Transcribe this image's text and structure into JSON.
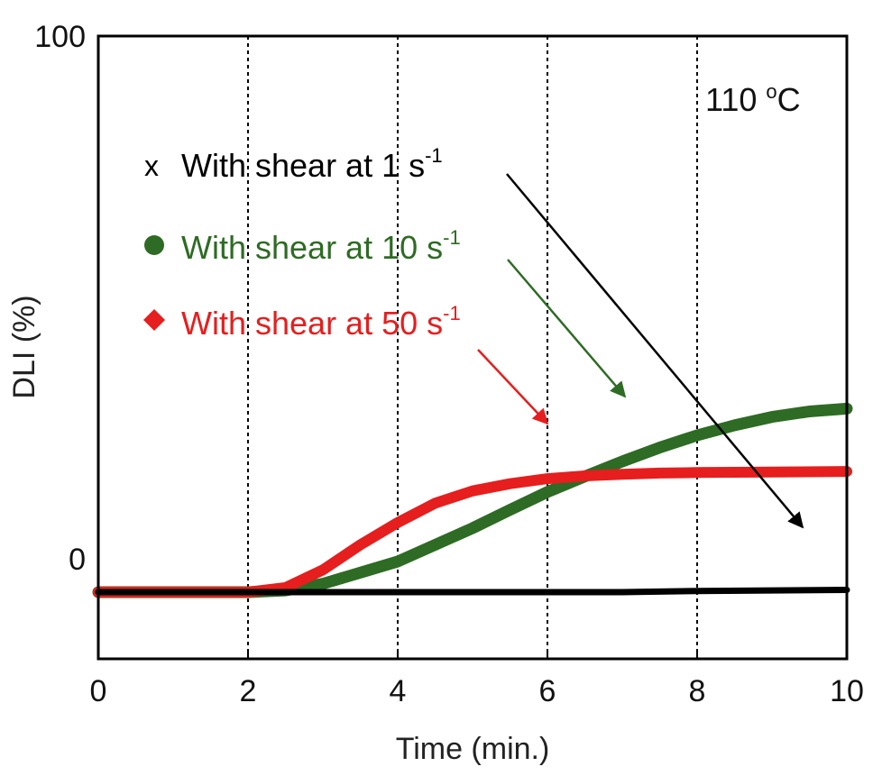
{
  "chart_data": {
    "type": "line",
    "xlabel": "Time (min.)",
    "ylabel": "DLI (%)",
    "xlim": [
      0,
      10
    ],
    "ylim": [
      -12,
      100
    ],
    "x_ticks": [
      0,
      2,
      4,
      6,
      8,
      10
    ],
    "x_tick_labels": [
      "0",
      "2",
      "4",
      "6",
      "8",
      "10"
    ],
    "y_ticks": [
      0,
      100
    ],
    "y_tick_labels": [
      "0",
      "100"
    ],
    "vertical_grid": [
      2,
      4,
      6,
      8
    ],
    "grid": "vertical dashed",
    "annotation": "110 °C",
    "annotation_parts": {
      "value": "110 ",
      "degree": "o",
      "unit": "C"
    },
    "legend_placement": "upper-left inside plot",
    "series": [
      {
        "name": "With shear at 1 s-1",
        "label_main": "With shear at 1 s",
        "label_sup": "-1",
        "marker": "x",
        "color": "#000000",
        "x": [
          0,
          1,
          2,
          3,
          4,
          5,
          6,
          7,
          8,
          9,
          10
        ],
        "y": [
          0,
          0,
          0,
          0,
          0,
          0,
          0,
          0,
          0.2,
          0.3,
          0.4
        ]
      },
      {
        "name": "With shear at 10 s-1",
        "label_main": "With shear at 10 s",
        "label_sup": "-1",
        "marker": "circle",
        "color": "#2e6b24",
        "x": [
          0,
          1,
          2,
          2.5,
          3,
          3.5,
          4,
          4.5,
          5,
          5.5,
          6,
          6.5,
          7,
          7.5,
          8,
          8.5,
          9,
          9.5,
          10
        ],
        "y": [
          0,
          0,
          0,
          0.3,
          1.5,
          3.5,
          5.5,
          8.5,
          11.5,
          14.8,
          18.0,
          20.8,
          23.5,
          26,
          28.2,
          30,
          31.5,
          32.5,
          33
        ]
      },
      {
        "name": "With shear at 50 s-1",
        "label_main": "With shear at 50 s",
        "label_sup": "-1",
        "marker": "diamond",
        "color": "#e61e1e",
        "x": [
          0,
          1,
          2,
          2.5,
          3,
          3.5,
          4,
          4.5,
          5,
          5.5,
          6,
          6.5,
          7,
          7.5,
          8,
          9,
          10
        ],
        "y": [
          0,
          0,
          0,
          0.8,
          4.0,
          8.5,
          12.5,
          16,
          18.2,
          19.5,
          20.4,
          20.9,
          21.2,
          21.4,
          21.5,
          21.6,
          21.7
        ]
      }
    ]
  }
}
